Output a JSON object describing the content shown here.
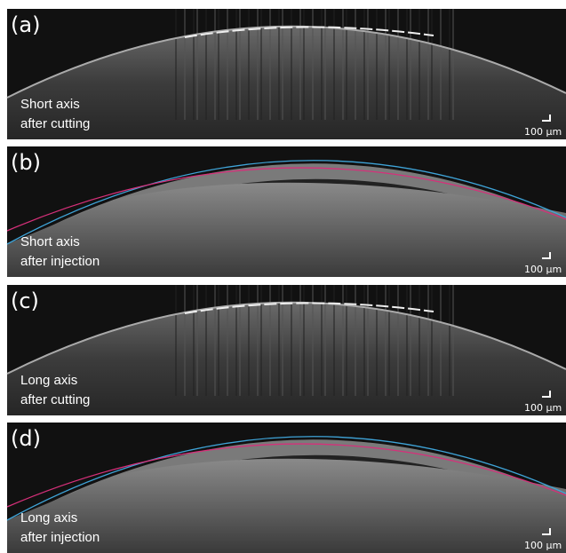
{
  "panels": [
    {
      "label": "(a)",
      "caption": [
        "Short axis",
        "after cutting"
      ],
      "scale": "100 μm",
      "boundaries": false
    },
    {
      "label": "(b)",
      "caption": [
        "Short axis",
        "after injection"
      ],
      "scale": "100 μm",
      "boundaries": true
    },
    {
      "label": "(c)",
      "caption": [
        "Long axis",
        "after cutting"
      ],
      "scale": "100 μm",
      "boundaries": false
    },
    {
      "label": "(d)",
      "caption": [
        "Long axis",
        "after injection"
      ],
      "scale": "100 μm",
      "boundaries": true
    }
  ]
}
